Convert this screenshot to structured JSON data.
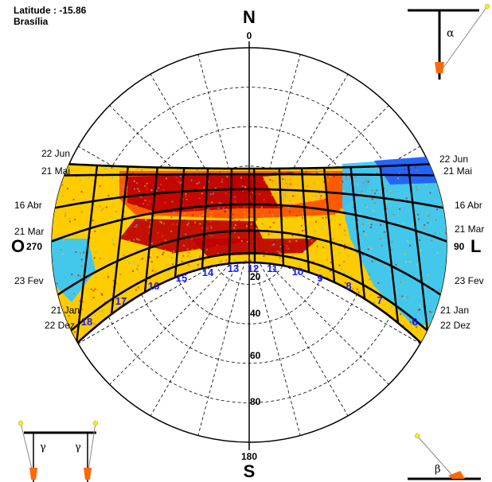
{
  "header": {
    "latitude_label": "Latitude : -15.86",
    "city": "Brasília"
  },
  "compass": {
    "north_letter": "N",
    "north_degrees": "0",
    "south_letter": "S",
    "south_degrees": "180",
    "east_letter": "L",
    "east_degrees": "90",
    "west_letter": "O",
    "west_degrees": "270"
  },
  "altitude_labels": [
    "20",
    "40",
    "60",
    "80"
  ],
  "date_labels_left": [
    "22 Jun",
    "21 Mai",
    "16 Abr",
    "21 Mar",
    "23 Fev",
    "21 Jan",
    "22 Dez"
  ],
  "date_labels_right": [
    "22 Jun",
    "21 Mai",
    "16 Abr",
    "21 Mar",
    "23 Fev",
    "21 Jan",
    "22 Dez"
  ],
  "hour_labels": [
    "6",
    "7",
    "8",
    "9",
    "10",
    "11",
    "12",
    "13",
    "14",
    "15",
    "16",
    "17",
    "18"
  ],
  "angle_symbols": {
    "alpha": "α",
    "beta": "β",
    "gamma": "γ"
  },
  "colors": {
    "hot_red": "#bf0000",
    "mid_orange": "#ff5000",
    "warm_yellow": "#ffcc00",
    "cool_cyan": "#33c8ff",
    "cool_blue": "#1f5cff",
    "hour_label_blue": "#1a1aff",
    "grid": "#000000"
  }
}
